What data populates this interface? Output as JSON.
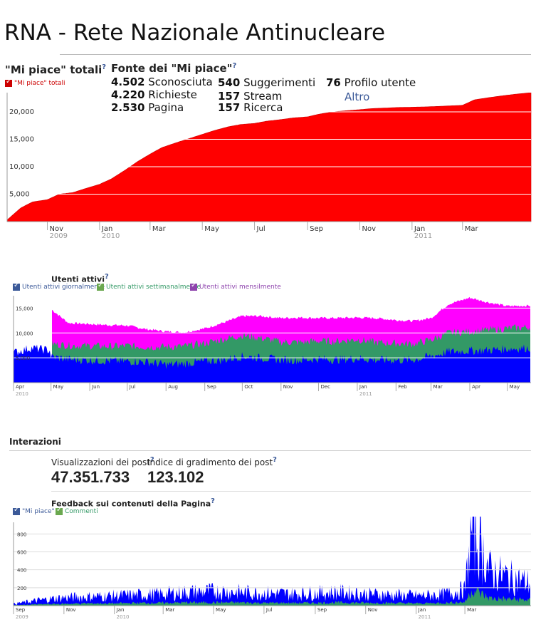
{
  "page_title": "RNA - Rete Nazionale Antinucleare",
  "likes_section": {
    "title": "\"Mi piace\" totali",
    "help": "?",
    "legend": "\"Mi piace\" totali",
    "sources_title": "Fonte dei \"Mi piace\"",
    "sources": [
      {
        "value": "4.502",
        "label": "Sconosciuta"
      },
      {
        "value": "4.220",
        "label": "Richieste"
      },
      {
        "value": "2.530",
        "label": "Pagina"
      },
      {
        "value": "540",
        "label": "Suggerimenti"
      },
      {
        "value": "157",
        "label": "Stream"
      },
      {
        "value": "157",
        "label": "Ricerca"
      },
      {
        "value": "76",
        "label": "Profilo utente"
      }
    ],
    "more_link": "Altro"
  },
  "active_section": {
    "title": "Utenti attivi",
    "help": "?",
    "legend": [
      "Utenti attivi giornalmente",
      "Utenti attivi settimanalmente",
      "Utenti attivi mensilmente"
    ]
  },
  "interactions": {
    "title": "Interazioni",
    "post_views_label": "Visualizzazioni dei post",
    "post_views_value": "47.351.733",
    "post_likes_label": "Indice di gradimento dei post",
    "post_likes_value": "123.102",
    "help": "?",
    "feedback_title": "Feedback sui contenuti della Pagina",
    "legend": [
      "\"Mi piace\"",
      "Commenti"
    ]
  },
  "colors": {
    "likes_fill": "#ff0000",
    "daily": "#0000ff",
    "weekly": "#339966",
    "monthly": "#ff00ff",
    "link": "#3b5998",
    "grid": "#dddddd",
    "legend_red": "#cc0000",
    "legend_blue": "#3b5998",
    "legend_green": "#6aa84f",
    "legend_purple": "#8e44ad"
  },
  "chart_data": [
    {
      "type": "area",
      "title": "\"Mi piace\" totali",
      "ylim": [
        0,
        23500
      ],
      "yticks": [
        "5,000",
        "10,000",
        "15,000",
        "20,000"
      ],
      "ytick_values": [
        5000,
        10000,
        15000,
        20000
      ],
      "xticks": [
        {
          "label": "Nov",
          "sub": "2009"
        },
        {
          "label": "Jan",
          "sub": "2010"
        },
        {
          "label": "Mar",
          "sub": ""
        },
        {
          "label": "May",
          "sub": ""
        },
        {
          "label": "Jul",
          "sub": ""
        },
        {
          "label": "Sep",
          "sub": ""
        },
        {
          "label": "Nov",
          "sub": ""
        },
        {
          "label": "Jan",
          "sub": "2011"
        },
        {
          "label": "Mar",
          "sub": ""
        }
      ],
      "x": [
        "2009-09-15",
        "2009-10-01",
        "2009-10-15",
        "2009-11-01",
        "2009-11-15",
        "2009-12-01",
        "2009-12-15",
        "2010-01-01",
        "2010-01-15",
        "2010-02-01",
        "2010-02-15",
        "2010-03-01",
        "2010-03-15",
        "2010-04-01",
        "2010-04-15",
        "2010-05-01",
        "2010-05-15",
        "2010-06-01",
        "2010-06-15",
        "2010-07-01",
        "2010-07-15",
        "2010-08-01",
        "2010-08-15",
        "2010-09-01",
        "2010-09-15",
        "2010-10-01",
        "2010-10-15",
        "2010-11-01",
        "2010-11-15",
        "2010-12-01",
        "2010-12-15",
        "2011-01-01",
        "2011-01-15",
        "2011-02-01",
        "2011-02-15",
        "2011-03-01",
        "2011-03-15",
        "2011-04-01",
        "2011-04-15",
        "2011-05-01",
        "2011-05-20"
      ],
      "series": [
        {
          "values": [
            300,
            2500,
            3600,
            4000,
            5000,
            5300,
            6000,
            6800,
            7800,
            9500,
            11000,
            12300,
            13500,
            14400,
            15100,
            15900,
            16600,
            17300,
            17700,
            17900,
            18300,
            18600,
            18900,
            19100,
            19600,
            20000,
            20200,
            20400,
            20600,
            20700,
            20800,
            20850,
            20900,
            21000,
            21100,
            21200,
            22200,
            22600,
            22900,
            23200,
            23500
          ]
        }
      ]
    },
    {
      "type": "area",
      "title": "Utenti attivi",
      "ylim": [
        0,
        17500
      ],
      "yticks": [
        "5,000",
        "10,000",
        "15,000"
      ],
      "ytick_values": [
        5000,
        10000,
        15000
      ],
      "xticks": [
        {
          "label": "Apr",
          "sub": "2010"
        },
        {
          "label": "May",
          "sub": ""
        },
        {
          "label": "Jun",
          "sub": ""
        },
        {
          "label": "Jul",
          "sub": ""
        },
        {
          "label": "Aug",
          "sub": ""
        },
        {
          "label": "Sep",
          "sub": ""
        },
        {
          "label": "Oct",
          "sub": ""
        },
        {
          "label": "Nov",
          "sub": ""
        },
        {
          "label": "Dec",
          "sub": ""
        },
        {
          "label": "Jan",
          "sub": "2011"
        },
        {
          "label": "Feb",
          "sub": ""
        },
        {
          "label": "Mar",
          "sub": ""
        },
        {
          "label": "Apr",
          "sub": ""
        },
        {
          "label": "May",
          "sub": ""
        }
      ],
      "x": [
        "2010-04-01",
        "2010-04-15",
        "2010-04-30",
        "2010-05-01",
        "2010-05-15",
        "2010-06-01",
        "2010-06-15",
        "2010-07-01",
        "2010-07-15",
        "2010-08-01",
        "2010-08-15",
        "2010-09-01",
        "2010-09-15",
        "2010-10-01",
        "2010-10-15",
        "2010-11-01",
        "2010-11-15",
        "2010-12-01",
        "2010-12-15",
        "2011-01-01",
        "2011-01-15",
        "2011-02-01",
        "2011-02-15",
        "2011-03-01",
        "2011-03-15",
        "2011-04-01",
        "2011-04-15",
        "2011-05-01",
        "2011-05-20"
      ],
      "series": [
        {
          "name": "Utenti attivi giornalmente",
          "values": [
            6000,
            7000,
            6500,
            5200,
            4700,
            4500,
            4400,
            4300,
            4200,
            3600,
            3800,
            4300,
            4500,
            5300,
            5000,
            4600,
            4500,
            4800,
            4600,
            4900,
            4600,
            4500,
            4600,
            5300,
            6200,
            6400,
            6500,
            6800,
            7000
          ]
        },
        {
          "name": "Utenti attivi settimanalmente",
          "values": [
            null,
            null,
            null,
            7800,
            7500,
            7400,
            7300,
            7400,
            7200,
            7200,
            7300,
            7900,
            8700,
            9500,
            9000,
            8200,
            8100,
            8400,
            8300,
            8700,
            8100,
            7900,
            7800,
            8600,
            10000,
            10300,
            10600,
            10900,
            11200
          ]
        },
        {
          "name": "Utenti attivi mensilmente",
          "values": [
            null,
            null,
            null,
            14800,
            12000,
            11800,
            11600,
            11500,
            10800,
            10300,
            10100,
            10900,
            12000,
            13400,
            13400,
            13000,
            13100,
            13000,
            13000,
            13100,
            13000,
            12600,
            12400,
            13000,
            15800,
            17100,
            16200,
            15400,
            15500
          ]
        }
      ]
    },
    {
      "type": "area",
      "title": "Feedback sui contenuti della Pagina",
      "ylim": [
        0,
        930
      ],
      "yticks": [
        "200",
        "400",
        "600",
        "800"
      ],
      "ytick_values": [
        200,
        400,
        600,
        800
      ],
      "xticks": [
        {
          "label": "Sep",
          "sub": "2009"
        },
        {
          "label": "Nov",
          "sub": ""
        },
        {
          "label": "Jan",
          "sub": "2010"
        },
        {
          "label": "Mar",
          "sub": ""
        },
        {
          "label": "May",
          "sub": ""
        },
        {
          "label": "Jul",
          "sub": ""
        },
        {
          "label": "Sep",
          "sub": ""
        },
        {
          "label": "Nov",
          "sub": ""
        },
        {
          "label": "Jan",
          "sub": "2011"
        },
        {
          "label": "Mar",
          "sub": ""
        }
      ],
      "x": [
        "2009-09-01",
        "2009-10-01",
        "2009-11-01",
        "2009-12-01",
        "2010-01-01",
        "2010-02-01",
        "2010-03-01",
        "2010-04-01",
        "2010-05-01",
        "2010-06-01",
        "2010-07-01",
        "2010-08-01",
        "2010-09-01",
        "2010-10-01",
        "2010-11-01",
        "2010-12-01",
        "2011-01-01",
        "2011-02-01",
        "2011-03-01",
        "2011-03-10",
        "2011-04-01",
        "2011-05-01",
        "2011-05-20"
      ],
      "series": [
        {
          "name": "\"Mi piace\"",
          "values": [
            20,
            60,
            90,
            100,
            110,
            120,
            130,
            150,
            160,
            150,
            140,
            130,
            140,
            150,
            130,
            120,
            110,
            120,
            180,
            880,
            380,
            300,
            250
          ]
        },
        {
          "name": "Commenti",
          "values": [
            5,
            15,
            20,
            25,
            25,
            30,
            30,
            35,
            35,
            35,
            30,
            30,
            30,
            35,
            30,
            30,
            25,
            30,
            40,
            180,
            80,
            70,
            60
          ]
        }
      ]
    }
  ]
}
